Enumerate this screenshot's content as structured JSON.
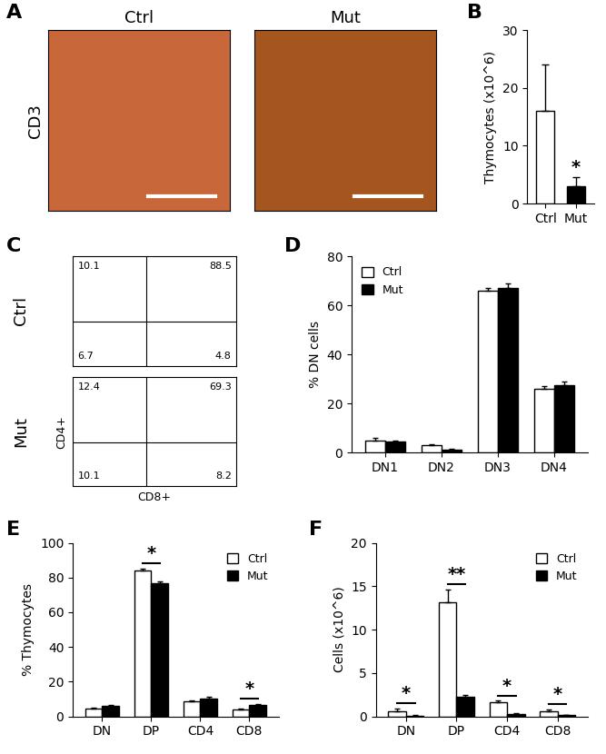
{
  "chart_data": [
    {
      "panel": "A",
      "type": "image",
      "ylabel": "CD3",
      "series": [
        {
          "name": "Ctrl",
          "color": "#c8673a"
        },
        {
          "name": "Mut",
          "color": "#a5561f"
        }
      ]
    },
    {
      "panel": "B",
      "type": "bar",
      "ylabel": "Thymocytes (x10^6)",
      "categories": [
        "Ctrl",
        "Mut"
      ],
      "values": [
        16,
        3
      ],
      "errors": [
        8,
        1.5
      ],
      "colors": [
        "#ffffff",
        "#000000"
      ],
      "significance": [
        null,
        "*"
      ],
      "ylim": [
        0,
        30
      ],
      "yticks": [
        0,
        10,
        20,
        30
      ]
    },
    {
      "panel": "C",
      "type": "quadrant",
      "xlabel": "CD8+",
      "ylabel": "CD4+",
      "tick_labels": false,
      "series": [
        {
          "name": "Ctrl",
          "quadrants": {
            "upper_left": 10.1,
            "upper_right": 88.5,
            "lower_left": 6.7,
            "lower_right": 4.8
          }
        },
        {
          "name": "Mut",
          "quadrants": {
            "upper_left": 12.4,
            "upper_right": 69.3,
            "lower_left": 10.1,
            "lower_right": 8.2
          }
        }
      ]
    },
    {
      "panel": "D",
      "type": "bar",
      "ylabel": "% DN cells",
      "categories": [
        "DN1",
        "DN2",
        "DN3",
        "DN4"
      ],
      "series": [
        {
          "name": "Ctrl",
          "color": "#ffffff",
          "values": [
            5,
            3,
            66,
            26
          ],
          "errors": [
            0.8,
            0.5,
            1,
            1
          ]
        },
        {
          "name": "Mut",
          "color": "#000000",
          "values": [
            4.5,
            1.2,
            67,
            27.5
          ],
          "errors": [
            0.5,
            0.3,
            1.8,
            1.5
          ]
        }
      ],
      "significance": [
        null,
        null,
        null,
        null
      ],
      "ylim": [
        0,
        80
      ],
      "yticks": [
        0,
        20,
        40,
        60,
        80
      ],
      "legend": "upper left"
    },
    {
      "panel": "E",
      "type": "bar",
      "ylabel": "% Thymocytes",
      "categories": [
        "DN",
        "DP",
        "CD4",
        "CD8"
      ],
      "series": [
        {
          "name": "Ctrl",
          "color": "#ffffff",
          "values": [
            4.5,
            84,
            8.5,
            4
          ],
          "errors": [
            0.5,
            1.2,
            0.8,
            0.5
          ]
        },
        {
          "name": "Mut",
          "color": "#000000",
          "values": [
            6,
            77,
            10,
            6.5
          ],
          "errors": [
            0.8,
            0.8,
            1.2,
            0.8
          ]
        }
      ],
      "significance": [
        null,
        "*",
        null,
        "*"
      ],
      "ylim": [
        0,
        100
      ],
      "yticks": [
        0,
        20,
        40,
        60,
        80,
        100
      ],
      "legend": "upper right"
    },
    {
      "panel": "F",
      "type": "bar",
      "ylabel": "Cells (x10^6)",
      "categories": [
        "DN",
        "DP",
        "CD4",
        "CD8"
      ],
      "series": [
        {
          "name": "Ctrl",
          "color": "#ffffff",
          "values": [
            0.6,
            13.1,
            1.6,
            0.6
          ],
          "errors": [
            0.3,
            1.5,
            0.2,
            0.2
          ]
        },
        {
          "name": "Mut",
          "color": "#000000",
          "values": [
            0.1,
            2.3,
            0.3,
            0.15
          ],
          "errors": [
            0.05,
            0.15,
            0.05,
            0.05
          ]
        }
      ],
      "significance": [
        "*",
        "**",
        "*",
        "*"
      ],
      "ylim": [
        0,
        20
      ],
      "yticks": [
        0,
        5,
        10,
        15,
        20
      ],
      "legend": "upper right"
    }
  ]
}
